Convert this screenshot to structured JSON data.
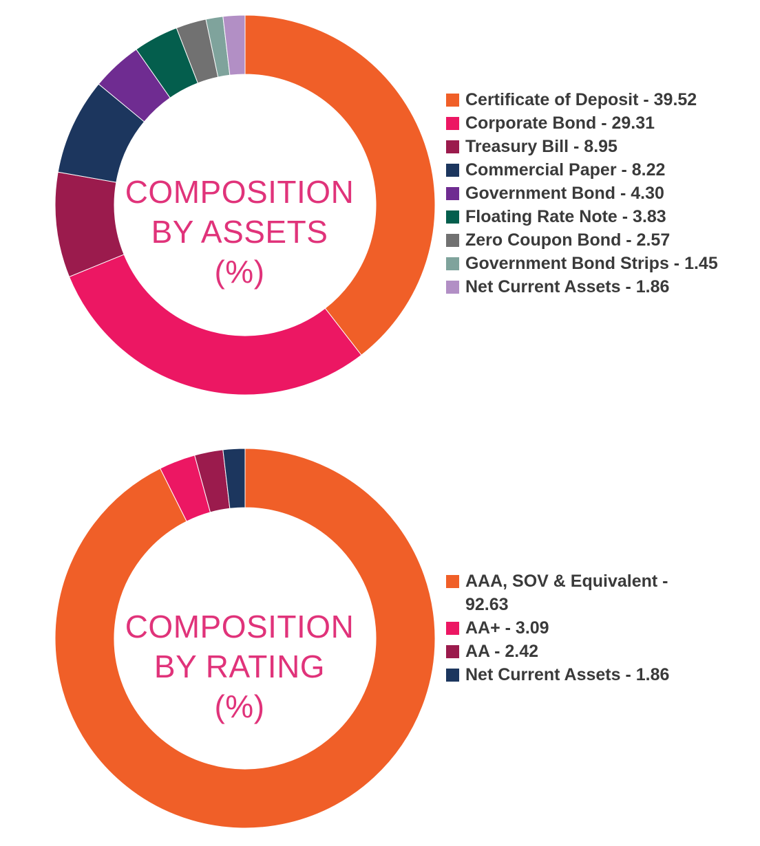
{
  "chart_data": [
    {
      "type": "pie",
      "title_lines": [
        "COMPOSITION",
        "BY ASSETS",
        "(%)"
      ],
      "categories": [
        "Certificate of Deposit",
        "Corporate Bond",
        "Treasury Bill",
        "Commercial Paper",
        "Government Bond",
        "Floating Rate Note",
        "Zero Coupon Bond",
        "Government Bond Strips",
        "Net Current Assets"
      ],
      "values": [
        39.52,
        29.31,
        8.95,
        8.22,
        4.3,
        3.83,
        2.57,
        1.45,
        1.86
      ],
      "value_labels": [
        "39.52",
        "29.31",
        "8.95",
        "8.22",
        "4.30",
        "3.83",
        "2.57",
        "1.45",
        "1.86"
      ],
      "legend_labels": [
        "Certificate of Deposit - 39.52",
        "Corporate Bond - 29.31",
        "Treasury Bill - 8.95",
        "Commercial Paper - 8.22",
        "Government Bond - 4.30",
        "Floating Rate Note - 3.83",
        "Zero Coupon Bond - 2.57",
        "Government Bond Strips - 1.45",
        "Net Current Assets - 1.86"
      ],
      "colors": [
        "#f05f28",
        "#ec1763",
        "#9b1b4d",
        "#1c365e",
        "#6f2c91",
        "#045e4d",
        "#717171",
        "#7fa39c",
        "#b28fc5"
      ],
      "legend": "right"
    },
    {
      "type": "pie",
      "title_lines": [
        "COMPOSITION",
        "BY RATING",
        "(%)"
      ],
      "categories": [
        "AAA, SOV & Equivalent",
        "AA+",
        "AA",
        "Net Current Assets"
      ],
      "values": [
        92.63,
        3.09,
        2.42,
        1.86
      ],
      "value_labels": [
        "92.63",
        "3.09",
        "2.42",
        "1.86"
      ],
      "legend_lines": [
        [
          "AAA, SOV & Equivalent -",
          "92.63"
        ],
        [
          "AA+ - 3.09"
        ],
        [
          "AA - 2.42"
        ],
        [
          "Net Current Assets - 1.86"
        ]
      ],
      "colors": [
        "#f05f28",
        "#ec1763",
        "#9b1b4d",
        "#1c365e"
      ],
      "legend": "right"
    }
  ]
}
